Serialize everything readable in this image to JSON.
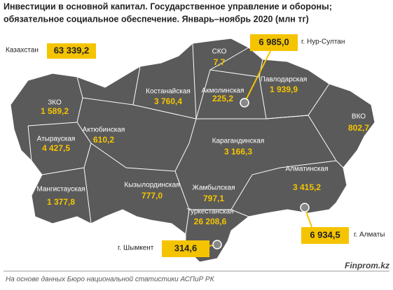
{
  "title": [
    "Инвестиции в основной капитал. Государственное управление и обороны;",
    "обязательное социальное обеспечение. Январь–ноябрь 2020  (млн тг)"
  ],
  "total": {
    "label": "Казахстан",
    "value": "63 339,2"
  },
  "regions": [
    {
      "name": "ЗКО",
      "value": "1 589,2"
    },
    {
      "name": "Атырауская",
      "value": "4 427,5"
    },
    {
      "name": "Мангистауская",
      "value": "1 377,8"
    },
    {
      "name": "Актюбинская",
      "value": "610,2"
    },
    {
      "name": "Костанайская",
      "value": "3 760,4"
    },
    {
      "name": "СКО",
      "value": "7,7"
    },
    {
      "name": "Акмолинская",
      "value": "225,2"
    },
    {
      "name": "Павлодарская",
      "value": "1 939,9"
    },
    {
      "name": "ВКО",
      "value": "802,7"
    },
    {
      "name": "Карагандинская",
      "value": "3 166,3"
    },
    {
      "name": "Кызылординская",
      "value": "777,0"
    },
    {
      "name": "Жамбылская",
      "value": "797,1"
    },
    {
      "name": "Туркестанская",
      "value": "26 208,6"
    },
    {
      "name": "Алматинская",
      "value": "3 415,2"
    }
  ],
  "cities": [
    {
      "name": "г. Нур-Султан",
      "value": "6 985,0"
    },
    {
      "name": "г. Алматы",
      "value": "6 934,5"
    },
    {
      "name": "г. Шымкент",
      "value": "314,6"
    }
  ],
  "source": "На основе данных Бюро национальной статистики АСПиР РК",
  "brand": "Finprom.kz"
}
